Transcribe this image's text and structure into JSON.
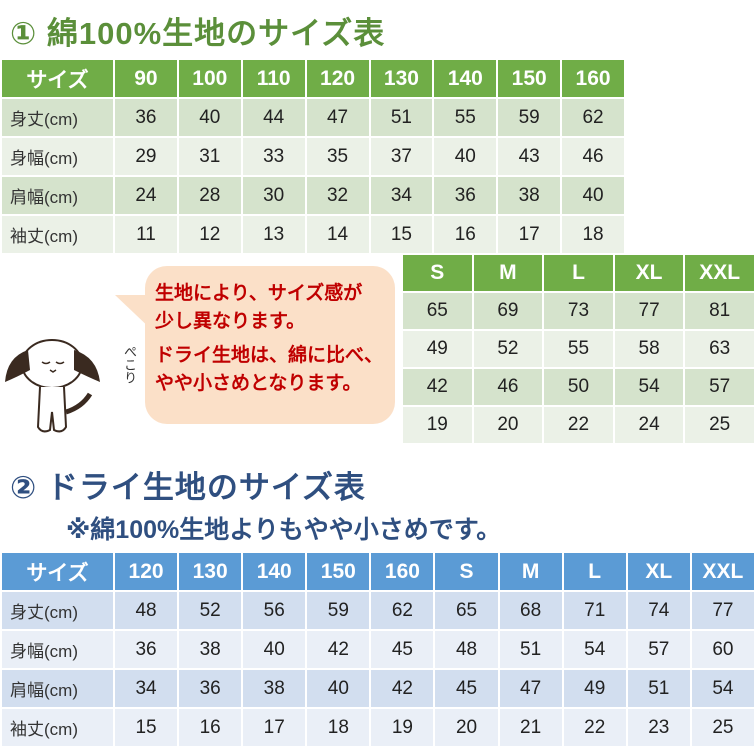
{
  "section1": {
    "title": "① 綿100%生地のサイズ表",
    "headers": [
      "サイズ",
      "90",
      "100",
      "110",
      "120",
      "130",
      "140",
      "150",
      "160"
    ],
    "rows": [
      [
        "身丈(cm)",
        "36",
        "40",
        "44",
        "47",
        "51",
        "55",
        "59",
        "62"
      ],
      [
        "身幅(cm)",
        "29",
        "31",
        "33",
        "35",
        "37",
        "40",
        "43",
        "46"
      ],
      [
        "肩幅(cm)",
        "24",
        "28",
        "30",
        "32",
        "34",
        "36",
        "38",
        "40"
      ],
      [
        "袖丈(cm)",
        "11",
        "12",
        "13",
        "14",
        "15",
        "16",
        "17",
        "18"
      ]
    ],
    "adult_headers": [
      "S",
      "M",
      "L",
      "XL",
      "XXL"
    ],
    "adult_rows": [
      [
        "65",
        "69",
        "73",
        "77",
        "81"
      ],
      [
        "49",
        "52",
        "55",
        "58",
        "63"
      ],
      [
        "42",
        "46",
        "50",
        "54",
        "57"
      ],
      [
        "19",
        "20",
        "22",
        "24",
        "25"
      ]
    ]
  },
  "note": {
    "line1": "生地により、サイズ感が",
    "line2": "少し異なります。",
    "line3": "ドライ生地は、綿に比べ、",
    "line4": "やや小さめとなります。",
    "pekori": "ぺこり"
  },
  "section2": {
    "title": "② ドライ生地のサイズ表",
    "subtitle": "※綿100%生地よりもやや小さめです。",
    "headers": [
      "サイズ",
      "120",
      "130",
      "140",
      "150",
      "160",
      "S",
      "M",
      "L",
      "XL",
      "XXL"
    ],
    "rows": [
      [
        "身丈(cm)",
        "48",
        "52",
        "56",
        "59",
        "62",
        "65",
        "68",
        "71",
        "74",
        "77"
      ],
      [
        "身幅(cm)",
        "36",
        "38",
        "40",
        "42",
        "45",
        "48",
        "51",
        "54",
        "57",
        "60"
      ],
      [
        "肩幅(cm)",
        "34",
        "36",
        "38",
        "40",
        "42",
        "45",
        "47",
        "49",
        "51",
        "54"
      ],
      [
        "袖丈(cm)",
        "15",
        "16",
        "17",
        "18",
        "19",
        "20",
        "21",
        "22",
        "23",
        "25"
      ]
    ]
  },
  "colors": {
    "green_header": "#70ad47",
    "blue_header": "#5b9bd5",
    "note_text": "#c00000",
    "bubble": "#fbe0c8"
  }
}
